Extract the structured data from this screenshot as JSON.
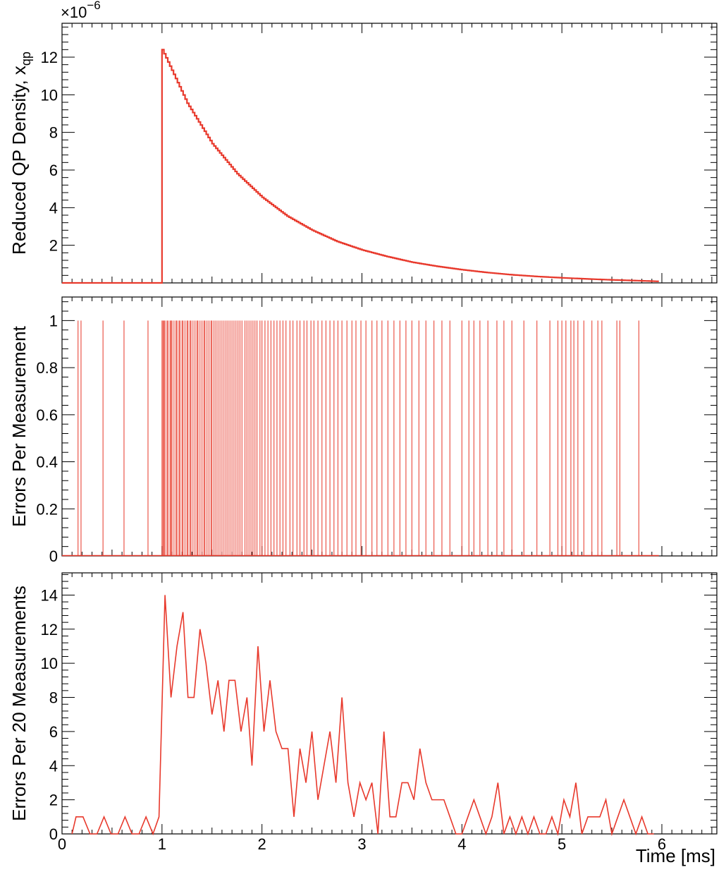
{
  "chart_data": [
    {
      "type": "line",
      "ylabel": "Reduced QP Density, x",
      "ylabel_subscript": "qp",
      "y_multiplier": "×10",
      "y_multiplier_exponent": "−6",
      "xlim": [
        0,
        6.55
      ],
      "ylim": [
        0,
        13.8
      ],
      "y_scale": 1e-06,
      "x_ticks": [
        0,
        1,
        2,
        3,
        4,
        5,
        6
      ],
      "y_ticks": [
        2,
        4,
        6,
        8,
        10,
        12
      ],
      "y_tick_labels": [
        "2",
        "4",
        "6",
        "8",
        "10",
        "12"
      ],
      "series": [
        {
          "color": "#e8392c",
          "x": [
            0,
            1.0,
            1.0,
            1.25,
            1.5,
            1.75,
            2.0,
            2.25,
            2.5,
            2.75,
            3.0,
            3.25,
            3.5,
            3.75,
            4.0,
            4.25,
            4.5,
            4.75,
            5.0,
            5.25,
            5.5,
            5.75,
            5.97
          ],
          "y": [
            0,
            0,
            12.4,
            9.55,
            7.4,
            5.8,
            4.55,
            3.55,
            2.8,
            2.2,
            1.75,
            1.4,
            1.1,
            0.88,
            0.7,
            0.55,
            0.43,
            0.34,
            0.27,
            0.21,
            0.16,
            0.12,
            0.08
          ]
        }
      ]
    },
    {
      "type": "bar",
      "ylabel": "Errors Per Measurement",
      "xlim": [
        0,
        6.55
      ],
      "ylim": [
        0,
        1.1
      ],
      "x_ticks": [
        0,
        1,
        2,
        3,
        4,
        5,
        6
      ],
      "y_ticks": [
        0,
        0.2,
        0.4,
        0.6,
        0.8,
        1
      ],
      "y_tick_labels": [
        "0",
        "0.2",
        "0.4",
        "0.6",
        "0.8",
        "1"
      ],
      "series": [
        {
          "color": "#e8392c",
          "value": 1,
          "error_times": [
            0.16,
            0.19,
            0.41,
            0.62,
            0.86,
            1.0,
            1.01,
            1.02,
            1.03,
            1.05,
            1.06,
            1.08,
            1.09,
            1.1,
            1.12,
            1.14,
            1.15,
            1.17,
            1.18,
            1.2,
            1.21,
            1.23,
            1.25,
            1.26,
            1.28,
            1.29,
            1.31,
            1.33,
            1.35,
            1.36,
            1.38,
            1.4,
            1.42,
            1.43,
            1.45,
            1.47,
            1.49,
            1.5,
            1.52,
            1.54,
            1.56,
            1.58,
            1.6,
            1.62,
            1.64,
            1.66,
            1.68,
            1.7,
            1.72,
            1.74,
            1.76,
            1.78,
            1.8,
            1.83,
            1.85,
            1.87,
            1.89,
            1.91,
            1.93,
            1.95,
            1.98,
            2.0,
            2.03,
            2.06,
            2.09,
            2.12,
            2.15,
            2.18,
            2.21,
            2.24,
            2.28,
            2.31,
            2.35,
            2.38,
            2.42,
            2.45,
            2.49,
            2.52,
            2.56,
            2.6,
            2.64,
            2.68,
            2.72,
            2.76,
            2.8,
            2.85,
            2.9,
            2.94,
            2.99,
            3.04,
            3.1,
            3.15,
            3.2,
            3.26,
            3.32,
            3.38,
            3.44,
            3.5,
            3.57,
            3.64,
            3.72,
            3.8,
            3.88,
            4.0,
            4.07,
            4.12,
            4.18,
            4.26,
            4.35,
            4.42,
            4.5,
            4.62,
            4.75,
            4.88,
            4.96,
            5.0,
            5.04,
            5.09,
            5.12,
            5.16,
            5.22,
            5.3,
            5.36,
            5.4,
            5.55,
            5.58,
            5.77
          ]
        }
      ]
    },
    {
      "type": "line",
      "ylabel": "Errors Per 20 Measurements",
      "xlabel": "Time [ms]",
      "xlim": [
        0,
        6.55
      ],
      "ylim": [
        0,
        15.3
      ],
      "x_ticks": [
        0,
        1,
        2,
        3,
        4,
        5,
        6
      ],
      "x_tick_labels": [
        "0",
        "1",
        "2",
        "3",
        "4",
        "5",
        "6"
      ],
      "y_ticks": [
        0,
        2,
        4,
        6,
        8,
        10,
        12,
        14
      ],
      "y_tick_labels": [
        "0",
        "2",
        "4",
        "6",
        "8",
        "10",
        "12",
        "14"
      ],
      "series": [
        {
          "color": "#e8392c",
          "x": [
            0.1,
            0.14,
            0.21,
            0.28,
            0.35,
            0.42,
            0.49,
            0.56,
            0.63,
            0.7,
            0.77,
            0.84,
            0.91,
            0.97,
            1.03,
            1.09,
            1.15,
            1.21,
            1.26,
            1.32,
            1.38,
            1.44,
            1.5,
            1.56,
            1.62,
            1.67,
            1.73,
            1.79,
            1.85,
            1.9,
            1.96,
            2.02,
            2.08,
            2.14,
            2.2,
            2.26,
            2.32,
            2.38,
            2.44,
            2.5,
            2.56,
            2.62,
            2.68,
            2.74,
            2.8,
            2.86,
            2.92,
            2.98,
            3.04,
            3.1,
            3.16,
            3.22,
            3.28,
            3.34,
            3.4,
            3.46,
            3.52,
            3.58,
            3.64,
            3.7,
            3.76,
            3.82,
            3.88,
            3.94,
            4.0,
            4.06,
            4.12,
            4.18,
            4.24,
            4.3,
            4.36,
            4.42,
            4.48,
            4.54,
            4.6,
            4.66,
            4.72,
            4.78,
            4.84,
            4.9,
            4.96,
            5.02,
            5.08,
            5.14,
            5.2,
            5.26,
            5.32,
            5.38,
            5.44,
            5.5,
            5.56,
            5.62,
            5.68,
            5.74,
            5.8,
            5.86,
            5.92
          ],
          "y": [
            0,
            1,
            1,
            0,
            0,
            1,
            0,
            0,
            1,
            0,
            0,
            1,
            0,
            1,
            14,
            8,
            11,
            13,
            8,
            8,
            12,
            10,
            7,
            9,
            6,
            9,
            9,
            6,
            8,
            4,
            11,
            6,
            9,
            6,
            5,
            5,
            1,
            5,
            3,
            6,
            2,
            4,
            6,
            3,
            8,
            3,
            1,
            3,
            2,
            3,
            0,
            6,
            1,
            1,
            3,
            3,
            2,
            5,
            3,
            2,
            2,
            2,
            1,
            0,
            0,
            1,
            2,
            1,
            0,
            1,
            3,
            0,
            1,
            0,
            1,
            0,
            1,
            0,
            0,
            1,
            0,
            2,
            1,
            3,
            0,
            1,
            1,
            1,
            2,
            0,
            1,
            2,
            1,
            0,
            1,
            0,
            0
          ]
        }
      ]
    }
  ]
}
